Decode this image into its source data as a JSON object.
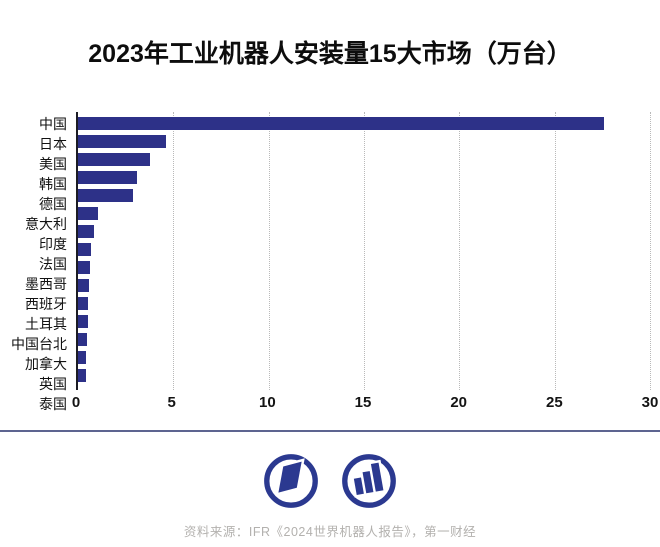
{
  "title": "2023年工业机器人安装量15大市场（万台）",
  "source_note": "资料来源：IFR《2024世界机器人报告》，第一财经",
  "footer_icons": {
    "left": "yicai-newspaper-logo",
    "right": "yicai-bars-logo"
  },
  "colors": {
    "bar": "#2d3188",
    "axis": "#1c1c24",
    "gridline": "#b9b9b9",
    "separator": "#5d6490",
    "logo": "#2b3990",
    "source_text": "#b3b1ae",
    "title": "#0d0d0d"
  },
  "chart_data": {
    "type": "bar",
    "orientation": "horizontal",
    "title": "2023年工业机器人安装量15大市场（万台）",
    "unit": "万台",
    "categories": [
      "中国",
      "日本",
      "美国",
      "韩国",
      "德国",
      "意大利",
      "印度",
      "法国",
      "墨西哥",
      "西班牙",
      "土耳其",
      "中国台北",
      "加拿大",
      "英国",
      "泰国"
    ],
    "values": [
      27.6,
      4.6,
      3.8,
      3.1,
      2.9,
      1.05,
      0.85,
      0.7,
      0.62,
      0.57,
      0.53,
      0.51,
      0.48,
      0.44,
      0.41
    ],
    "xlim": [
      0,
      30
    ],
    "xticks": [
      0,
      5,
      10,
      15,
      20,
      25,
      30
    ],
    "grid": "vertical-dotted",
    "legend": "none",
    "bar_color": "#2d3188"
  }
}
